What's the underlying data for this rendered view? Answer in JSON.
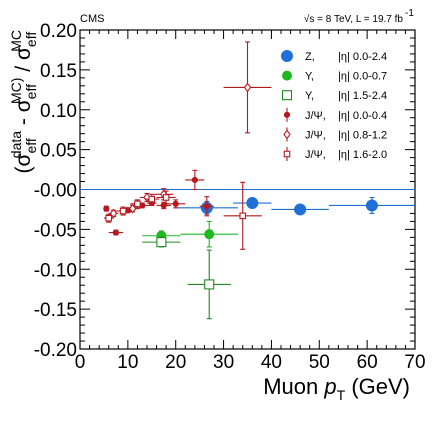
{
  "chart_data": {
    "type": "scatter",
    "experiment_label": "CMS",
    "energy_label": "√s = 8 TeV, L = 19.7 fb",
    "energy_label_superscript": "-1",
    "xlabel_main": "Muon ",
    "xlabel_italic": "p",
    "xlabel_sub": "T",
    "xlabel_unit": " (GeV)",
    "ylabel": "(σeff(data) - σeff(MC)) / σeff(MC)",
    "xlim": [
      0,
      70
    ],
    "ylim": [
      -0.2,
      0.2
    ],
    "xticks": [
      0,
      10,
      20,
      30,
      40,
      50,
      60,
      70
    ],
    "xtick_labels": [
      "0",
      "10",
      "20",
      "30",
      "40",
      "50",
      "60",
      "70"
    ],
    "yticks": [
      -0.2,
      -0.15,
      -0.1,
      -0.05,
      0.0,
      0.05,
      0.1,
      0.15,
      0.2
    ],
    "ytick_labels": [
      "-0.20",
      "-0.15",
      "-0.10",
      "-0.05",
      "-0.00",
      "0.05",
      "0.10",
      "0.15",
      "0.20"
    ],
    "reference_line_y": 0.0,
    "legend_position": "top-right",
    "series": [
      {
        "name": "Z,",
        "region": "|η| 0.0-2.4",
        "color": "#1f6fd6",
        "marker": "filled-circle",
        "size": "large",
        "points": [
          {
            "x": 26.5,
            "y": -0.023,
            "xerr": 6.5,
            "yerr": 0.008
          },
          {
            "x": 36,
            "y": -0.017,
            "xerr": 4,
            "yerr": 0.004
          },
          {
            "x": 46,
            "y": -0.025,
            "xerr": 6,
            "yerr": 0.004
          },
          {
            "x": 61,
            "y": -0.02,
            "xerr": 9,
            "yerr": 0.01
          }
        ]
      },
      {
        "name": "Υ,",
        "region": "|η| 0.0-0.7",
        "color": "#1fb81f",
        "marker": "filled-circle",
        "size": "medium",
        "points": [
          {
            "x": 17,
            "y": -0.058,
            "xerr": 4,
            "yerr": 0.006
          },
          {
            "x": 27,
            "y": -0.056,
            "xerr": 6,
            "yerr": 0.016
          }
        ]
      },
      {
        "name": "Υ,",
        "region": "|η| 1.5-2.4",
        "color": "#1f8a1f",
        "marker": "open-square",
        "size": "large",
        "points": [
          {
            "x": 17,
            "y": -0.066,
            "xerr": 4,
            "yerr": 0.006
          },
          {
            "x": 27,
            "y": -0.119,
            "xerr": 4.5,
            "yerr": 0.043
          }
        ]
      },
      {
        "name": "J/Ψ,",
        "region": "|η| 0.0-0.4",
        "color": "#b5191e",
        "marker": "filled-circle",
        "size": "small",
        "points": [
          {
            "x": 5.5,
            "y": -0.024,
            "xerr": 0.5,
            "yerr": 0.003
          },
          {
            "x": 7.5,
            "y": -0.054,
            "xerr": 1.5,
            "yerr": 0.003
          },
          {
            "x": 10,
            "y": -0.026,
            "xerr": 1,
            "yerr": 0.003
          },
          {
            "x": 13,
            "y": -0.02,
            "xerr": 1.5,
            "yerr": 0.003
          },
          {
            "x": 15,
            "y": -0.017,
            "xerr": 1,
            "yerr": 0.003
          },
          {
            "x": 17.5,
            "y": -0.02,
            "xerr": 1.5,
            "yerr": 0.004
          },
          {
            "x": 20,
            "y": -0.018,
            "xerr": 2,
            "yerr": 0.005
          },
          {
            "x": 24,
            "y": 0.012,
            "xerr": 2,
            "yerr": 0.012
          },
          {
            "x": 26.5,
            "y": -0.021,
            "xerr": 1.5,
            "yerr": 0.012
          }
        ]
      },
      {
        "name": "J/Ψ,",
        "region": "|η| 0.8-1.2",
        "color": "#b5191e",
        "marker": "open-diamond",
        "size": "small",
        "points": [
          {
            "x": 7,
            "y": -0.03,
            "xerr": 1,
            "yerr": 0.004
          },
          {
            "x": 11,
            "y": -0.024,
            "xerr": 1.5,
            "yerr": 0.004
          },
          {
            "x": 14,
            "y": -0.01,
            "xerr": 1.5,
            "yerr": 0.005
          },
          {
            "x": 17.5,
            "y": -0.006,
            "xerr": 2,
            "yerr": 0.007
          },
          {
            "x": 35,
            "y": 0.128,
            "xerr": 5,
            "yerr": 0.057
          }
        ]
      },
      {
        "name": "J/Ψ,",
        "region": "|η| 1.6-2.0",
        "color": "#b5191e",
        "marker": "open-square",
        "size": "small",
        "points": [
          {
            "x": 6,
            "y": -0.036,
            "xerr": 1,
            "yerr": 0.005
          },
          {
            "x": 9,
            "y": -0.027,
            "xerr": 1.5,
            "yerr": 0.005
          },
          {
            "x": 12,
            "y": -0.018,
            "xerr": 1.5,
            "yerr": 0.005
          },
          {
            "x": 15,
            "y": -0.012,
            "xerr": 1.5,
            "yerr": 0.006
          },
          {
            "x": 18,
            "y": -0.01,
            "xerr": 2,
            "yerr": 0.008
          },
          {
            "x": 34,
            "y": -0.033,
            "xerr": 4,
            "yerr": 0.042
          }
        ]
      }
    ]
  }
}
